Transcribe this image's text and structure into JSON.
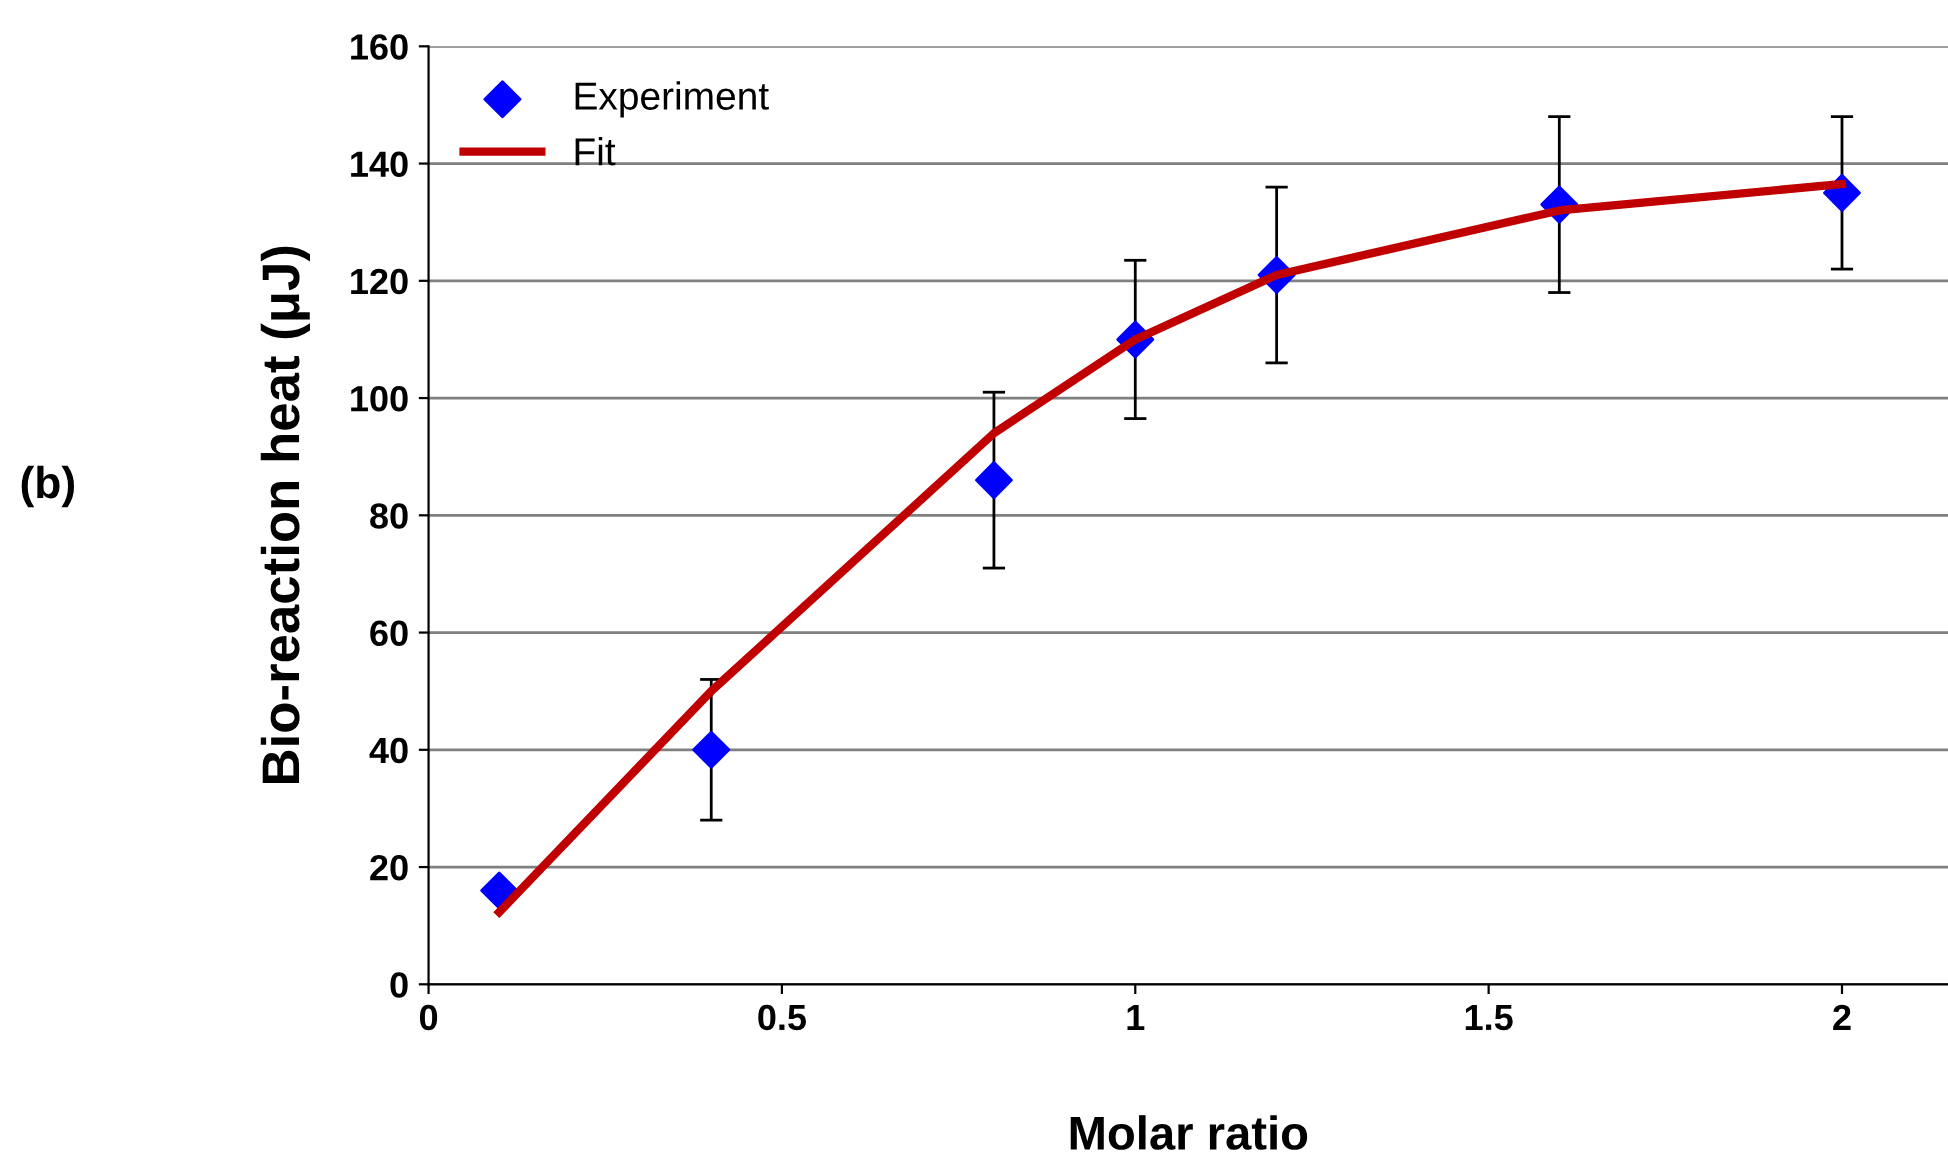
{
  "chart_data": {
    "type": "scatter",
    "xlabel": "Molar ratio",
    "ylabel": "Bio-reaction heat (μJ)",
    "annotations": [
      "(b)"
    ],
    "xlim": [
      0,
      2.15
    ],
    "ylim": [
      0,
      160
    ],
    "xticks": [
      0,
      0.5,
      1,
      1.5,
      2
    ],
    "yticks": [
      0,
      20,
      40,
      60,
      80,
      100,
      120,
      140,
      160
    ],
    "grid": "y",
    "legend": "top left",
    "series": [
      {
        "name": "Experiment",
        "marker": "diamond",
        "color": "#0000ff",
        "x": [
          0.1,
          0.4,
          0.8,
          1.0,
          1.2,
          1.6,
          2.0
        ],
        "values": [
          16,
          40,
          86,
          110,
          121,
          133,
          135
        ],
        "errors": [
          null,
          12,
          15,
          13.5,
          15,
          15,
          13
        ]
      },
      {
        "name": "Fit",
        "type": "line",
        "marker": "none",
        "line_style": "solid",
        "color": "#c00000",
        "x": [
          0.1,
          0.4,
          0.8,
          1.0,
          1.2,
          1.6,
          2.0
        ],
        "values": [
          12.3,
          50,
          94,
          110,
          121,
          132,
          136.5
        ]
      }
    ]
  }
}
